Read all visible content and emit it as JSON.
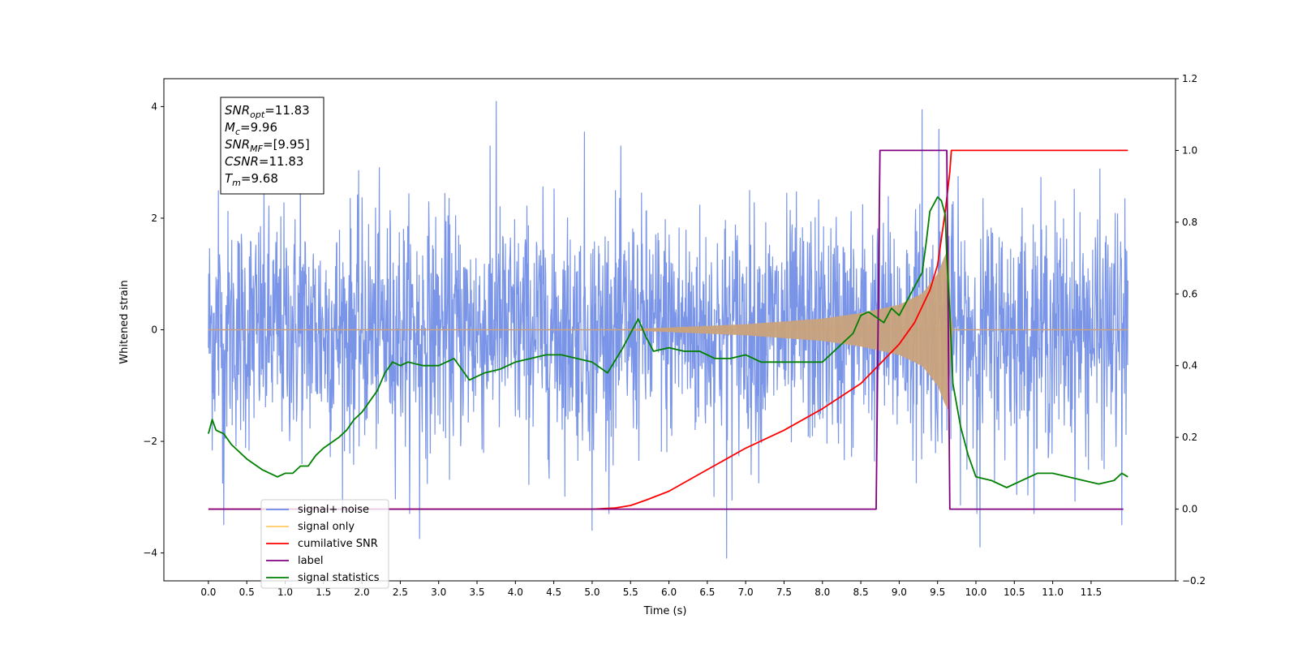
{
  "chart_data": {
    "type": "line",
    "xlabel": "Time (s)",
    "ylabel": "Whitened strain",
    "xlim": [
      -0.58,
      12.6
    ],
    "ylim": [
      -4.5,
      4.5
    ],
    "y2lim": [
      -0.2,
      1.2
    ],
    "x_ticks": [
      0.0,
      0.5,
      1.0,
      1.5,
      2.0,
      2.5,
      3.0,
      3.5,
      4.0,
      4.5,
      5.0,
      5.5,
      6.0,
      6.5,
      7.0,
      7.5,
      8.0,
      8.5,
      9.0,
      9.5,
      10.0,
      10.5,
      11.0,
      11.5
    ],
    "x_tick_labels": [
      "0.0",
      "0.5",
      "1.0",
      "1.5",
      "2.0",
      "2.5",
      "3.0",
      "3.5",
      "4.0",
      "4.5",
      "5.0",
      "5.5",
      "6.0",
      "6.5",
      "7.0",
      "7.5",
      "8.0",
      "8.5",
      "9.0",
      "9.5",
      "10.0",
      "10.5",
      "11.0",
      "11.5"
    ],
    "y_ticks": [
      -4,
      -2,
      0,
      2,
      4
    ],
    "y_tick_labels": [
      "−4",
      "−2",
      "0",
      "2",
      "4"
    ],
    "y2_ticks": [
      -0.2,
      0.0,
      0.2,
      0.4,
      0.6,
      0.8,
      1.0,
      1.2
    ],
    "y2_tick_labels": [
      "−0.2",
      "0.0",
      "0.2",
      "0.4",
      "0.6",
      "0.8",
      "1.0",
      "1.2"
    ],
    "grid": false,
    "legend_placement": "lower-left",
    "annotation": [
      {
        "base": "SNR",
        "sub": "opt",
        "rest": "=11.83"
      },
      {
        "base": "M",
        "sub": "c",
        "rest": "=9.96"
      },
      {
        "base": "SNR",
        "sub": "MF",
        "rest": "=[9.95]"
      },
      {
        "base": "CSNR",
        "sub": "",
        "rest": "=11.83"
      },
      {
        "base": "T",
        "sub": "m",
        "rest": "=9.68"
      }
    ],
    "series": [
      {
        "name": "signal+ noise",
        "axis": "left",
        "color": "#6b8ae6",
        "style": "noise",
        "x_range": [
          0.0,
          11.98
        ],
        "std": 1.05,
        "spike_extremes": [
          [
            0.13,
            2.5
          ],
          [
            0.2,
            -3.5
          ],
          [
            3.75,
            4.1
          ],
          [
            6.75,
            -4.1
          ],
          [
            9.3,
            3.95
          ],
          [
            9.52,
            3.6
          ],
          [
            10.05,
            -3.9
          ],
          [
            11.9,
            -3.5
          ],
          [
            1.2,
            3.4
          ],
          [
            4.9,
            3.55
          ],
          [
            2.75,
            -3.75
          ],
          [
            5.0,
            -3.6
          ]
        ]
      },
      {
        "name": "signal only",
        "axis": "left",
        "color": "#ffc965",
        "fill_color": "#c9a27b",
        "style": "chirp",
        "x_range": [
          0.0,
          11.98
        ],
        "envelope": [
          [
            5.2,
            0.0
          ],
          [
            6.0,
            0.04
          ],
          [
            7.0,
            0.1
          ],
          [
            8.0,
            0.2
          ],
          [
            8.5,
            0.3
          ],
          [
            9.0,
            0.45
          ],
          [
            9.3,
            0.65
          ],
          [
            9.5,
            1.0
          ],
          [
            9.6,
            1.35
          ],
          [
            9.65,
            1.45
          ],
          [
            9.68,
            0.0
          ],
          [
            11.98,
            0.0
          ]
        ]
      },
      {
        "name": "cumilative SNR",
        "axis": "right",
        "color": "#ff0000",
        "x": [
          0.0,
          5.0,
          5.3,
          5.5,
          5.7,
          6.0,
          6.5,
          7.0,
          7.5,
          8.0,
          8.5,
          9.0,
          9.2,
          9.4,
          9.5,
          9.6,
          9.66,
          9.68,
          11.98
        ],
        "values": [
          0.0,
          0.0,
          0.003,
          0.01,
          0.025,
          0.05,
          0.11,
          0.17,
          0.22,
          0.28,
          0.35,
          0.46,
          0.52,
          0.61,
          0.68,
          0.83,
          0.94,
          1.0,
          1.0
        ]
      },
      {
        "name": "label",
        "axis": "right",
        "color": "#800080",
        "x": [
          0.0,
          8.7,
          8.75,
          9.62,
          9.66,
          11.92
        ],
        "values": [
          0.0,
          0.0,
          1.0,
          1.0,
          0.0,
          0.0
        ]
      },
      {
        "name": "signal statistics",
        "axis": "right",
        "color": "#008000",
        "x": [
          0.0,
          0.05,
          0.1,
          0.2,
          0.3,
          0.5,
          0.7,
          0.9,
          1.0,
          1.1,
          1.2,
          1.3,
          1.4,
          1.5,
          1.7,
          1.8,
          1.9,
          2.0,
          2.1,
          2.2,
          2.3,
          2.4,
          2.5,
          2.6,
          2.8,
          3.0,
          3.2,
          3.4,
          3.6,
          3.8,
          4.0,
          4.2,
          4.4,
          4.6,
          4.8,
          5.0,
          5.2,
          5.4,
          5.5,
          5.6,
          5.7,
          5.8,
          6.0,
          6.2,
          6.4,
          6.6,
          6.8,
          7.0,
          7.2,
          7.4,
          7.6,
          7.8,
          8.0,
          8.2,
          8.4,
          8.5,
          8.6,
          8.8,
          8.9,
          9.0,
          9.1,
          9.2,
          9.3,
          9.35,
          9.4,
          9.5,
          9.55,
          9.6,
          9.62,
          9.66,
          9.7,
          9.8,
          9.9,
          10.0,
          10.2,
          10.4,
          10.6,
          10.8,
          11.0,
          11.2,
          11.4,
          11.6,
          11.8,
          11.9,
          11.98
        ],
        "values": [
          0.21,
          0.25,
          0.22,
          0.21,
          0.18,
          0.14,
          0.11,
          0.09,
          0.1,
          0.1,
          0.12,
          0.12,
          0.15,
          0.17,
          0.2,
          0.22,
          0.25,
          0.27,
          0.3,
          0.33,
          0.38,
          0.41,
          0.4,
          0.41,
          0.4,
          0.4,
          0.42,
          0.36,
          0.38,
          0.39,
          0.41,
          0.42,
          0.43,
          0.43,
          0.42,
          0.41,
          0.38,
          0.45,
          0.49,
          0.53,
          0.48,
          0.44,
          0.45,
          0.44,
          0.44,
          0.42,
          0.42,
          0.43,
          0.41,
          0.41,
          0.41,
          0.41,
          0.41,
          0.45,
          0.49,
          0.54,
          0.55,
          0.52,
          0.56,
          0.54,
          0.58,
          0.62,
          0.66,
          0.74,
          0.83,
          0.87,
          0.86,
          0.82,
          0.7,
          0.55,
          0.35,
          0.23,
          0.15,
          0.09,
          0.08,
          0.06,
          0.08,
          0.1,
          0.1,
          0.09,
          0.08,
          0.07,
          0.08,
          0.1,
          0.09
        ]
      }
    ]
  }
}
